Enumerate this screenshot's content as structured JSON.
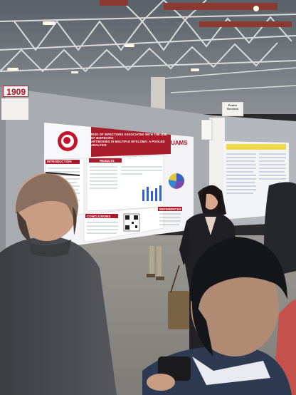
{
  "photo": {
    "description_free": true,
    "booth_sign": {
      "number": "1909"
    },
    "poster": {
      "title_lines": [
        "RISK OF INFECTIONS ASSOCIATED WITH THE USE OF BISPECIFIC",
        "ANTIBODIES IN MULTIPLE MYELOMA: A POOLED ANALYSIS"
      ],
      "institution_logo": "UAMS",
      "sections": [
        "INTRODUCTION",
        "RESULTS",
        "CONCLUSIONS",
        "REFERENCES"
      ]
    },
    "service_sign": {
      "lines": [
        "Poster",
        "Services"
      ]
    }
  }
}
